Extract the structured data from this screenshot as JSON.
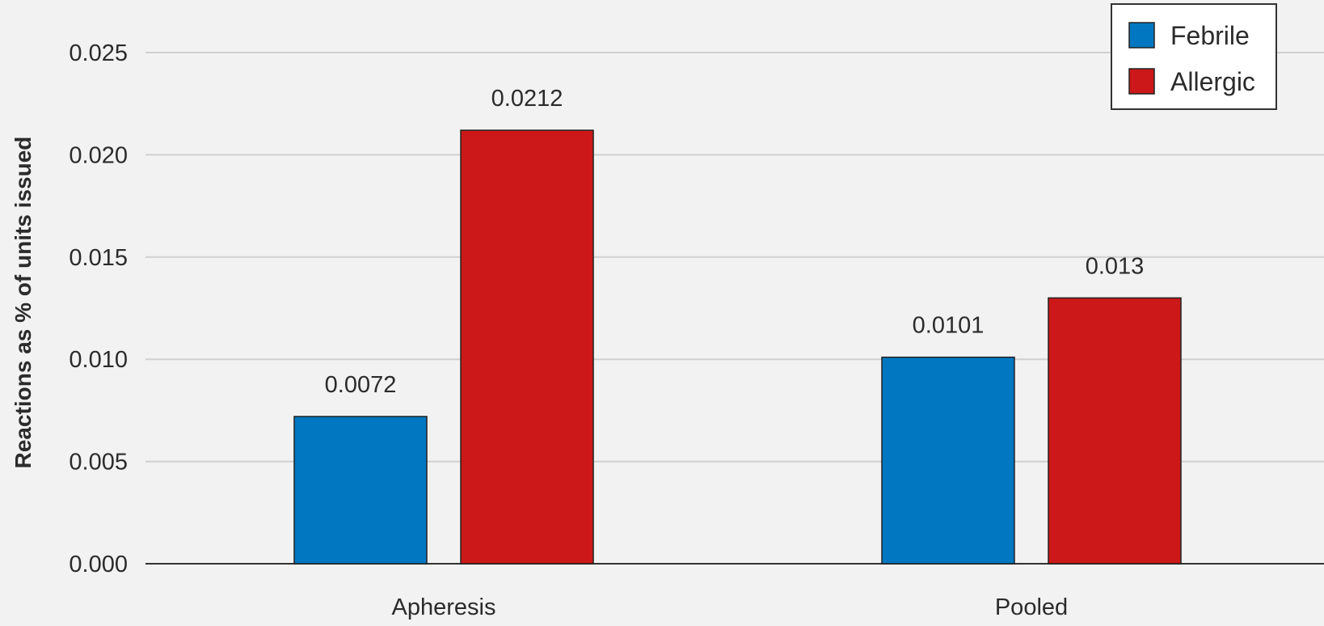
{
  "chart_data": {
    "type": "bar",
    "title": "",
    "xlabel": "",
    "ylabel": "Reactions as % of units issued",
    "categories": [
      "Apheresis",
      "Pooled"
    ],
    "series": [
      {
        "name": "Febrile",
        "color": "#0077c0",
        "values": [
          0.0072,
          0.0101
        ],
        "labels": [
          "0.0072",
          "0.0101"
        ]
      },
      {
        "name": "Allergic",
        "color": "#cc1818",
        "values": [
          0.0212,
          0.013
        ],
        "labels": [
          "0.0212",
          "0.013"
        ]
      }
    ],
    "ylim": [
      0,
      0.025
    ],
    "yticks": [
      0,
      0.005,
      0.01,
      0.015,
      0.02,
      0.025
    ],
    "ytick_labels": [
      "0.000",
      "0.005",
      "0.010",
      "0.015",
      "0.020",
      "0.025"
    ],
    "grid": true,
    "legend_position": "top-right"
  }
}
